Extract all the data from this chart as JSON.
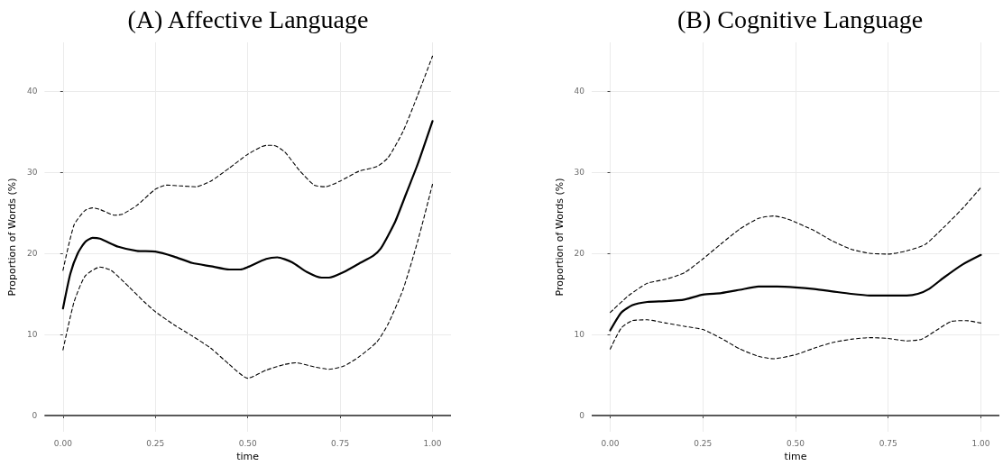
{
  "chart_data": [
    {
      "type": "line",
      "title": "(A) Affective Language",
      "xlabel": "time",
      "ylabel": "Proportion of Words (%)",
      "xlim": [
        -0.05,
        1.05
      ],
      "xticks": [
        {
          "value": 0,
          "label": "0.00"
        },
        {
          "value": 0.25,
          "label": "0.25"
        },
        {
          "value": 0.5,
          "label": "0.50"
        },
        {
          "value": 0.75,
          "label": "0.75"
        },
        {
          "value": 1,
          "label": "1.00"
        }
      ],
      "ylim": [
        -2,
        46
      ],
      "yticks": [
        0,
        10,
        20,
        30,
        40
      ],
      "grid": true,
      "marker": "none",
      "ref_lines": [
        {
          "axis": "y",
          "value": 0,
          "color": "#595959"
        }
      ],
      "series": [
        {
          "color": "#000000",
          "line_style": "solid",
          "x": [
            0,
            0.02,
            0.04,
            0.06,
            0.08,
            0.1,
            0.15,
            0.2,
            0.25,
            0.3,
            0.35,
            0.4,
            0.45,
            0.48,
            0.5,
            0.55,
            0.58,
            0.62,
            0.66,
            0.7,
            0.72,
            0.76,
            0.8,
            0.84,
            0.86,
            0.88,
            0.9,
            0.93,
            0.96,
            1.0
          ],
          "values": [
            13.2,
            17.5,
            20,
            21.4,
            21.9,
            21.8,
            20.8,
            20.3,
            20.2,
            19.6,
            18.8,
            18.4,
            18.0,
            18.0,
            18.3,
            19.3,
            19.5,
            18.9,
            17.7,
            17.0,
            17.0,
            17.7,
            18.7,
            19.7,
            20.6,
            22.2,
            24,
            27.5,
            31,
            36.3
          ]
        },
        {
          "color": "#000000",
          "line_style": "dashed",
          "x": [
            0,
            0.03,
            0.06,
            0.08,
            0.1,
            0.14,
            0.16,
            0.2,
            0.25,
            0.28,
            0.32,
            0.36,
            0.4,
            0.45,
            0.5,
            0.55,
            0.57,
            0.6,
            0.64,
            0.68,
            0.71,
            0.75,
            0.8,
            0.85,
            0.88,
            0.92,
            0.96,
            1.0
          ],
          "values": [
            17.9,
            23.5,
            25.3,
            25.6,
            25.4,
            24.7,
            24.8,
            25.9,
            27.9,
            28.4,
            28.3,
            28.2,
            28.9,
            30.5,
            32.2,
            33.3,
            33.3,
            32.5,
            30.2,
            28.4,
            28.2,
            28.9,
            30.1,
            30.7,
            31.8,
            35,
            39.5,
            44.3
          ]
        },
        {
          "color": "#000000",
          "line_style": "dashed",
          "x": [
            0,
            0.03,
            0.06,
            0.1,
            0.13,
            0.18,
            0.22,
            0.25,
            0.3,
            0.35,
            0.4,
            0.45,
            0.5,
            0.55,
            0.6,
            0.63,
            0.68,
            0.72,
            0.76,
            0.8,
            0.85,
            0.88,
            0.92,
            0.96,
            1.0
          ],
          "values": [
            8.1,
            14,
            17.2,
            18.3,
            17.9,
            15.8,
            14,
            12.8,
            11.2,
            9.8,
            8.3,
            6.3,
            4.6,
            5.6,
            6.3,
            6.5,
            6,
            5.7,
            6.1,
            7.2,
            9.1,
            11.3,
            15.5,
            21.5,
            28.5
          ]
        }
      ]
    },
    {
      "type": "line",
      "title": "(B) Cognitive Language",
      "xlabel": "time",
      "ylabel": "Proportion of Words (%)",
      "xlim": [
        -0.05,
        1.05
      ],
      "xticks": [
        {
          "value": 0,
          "label": "0.00"
        },
        {
          "value": 0.25,
          "label": "0.25"
        },
        {
          "value": 0.5,
          "label": "0.50"
        },
        {
          "value": 0.75,
          "label": "0.75"
        },
        {
          "value": 1,
          "label": "1.00"
        }
      ],
      "ylim": [
        -2,
        46
      ],
      "yticks": [
        0,
        10,
        20,
        30,
        40
      ],
      "grid": true,
      "marker": "none",
      "ref_lines": [
        {
          "axis": "y",
          "value": 0,
          "color": "#595959"
        }
      ],
      "series": [
        {
          "color": "#000000",
          "line_style": "solid",
          "x": [
            0,
            0.03,
            0.06,
            0.1,
            0.15,
            0.2,
            0.25,
            0.3,
            0.35,
            0.4,
            0.45,
            0.5,
            0.55,
            0.6,
            0.65,
            0.7,
            0.75,
            0.8,
            0.83,
            0.86,
            0.9,
            0.95,
            1.0
          ],
          "values": [
            10.5,
            12.7,
            13.6,
            14,
            14.1,
            14.3,
            14.9,
            15.1,
            15.5,
            15.9,
            15.9,
            15.8,
            15.6,
            15.3,
            15.0,
            14.8,
            14.8,
            14.8,
            15.0,
            15.6,
            17,
            18.6,
            19.8
          ]
        },
        {
          "color": "#000000",
          "line_style": "dashed",
          "x": [
            0,
            0.05,
            0.1,
            0.15,
            0.2,
            0.25,
            0.3,
            0.35,
            0.4,
            0.44,
            0.48,
            0.55,
            0.6,
            0.65,
            0.7,
            0.75,
            0.8,
            0.85,
            0.9,
            0.95,
            1.0
          ],
          "values": [
            12.7,
            14.8,
            16.3,
            16.8,
            17.6,
            19.3,
            21.2,
            23.0,
            24.3,
            24.6,
            24.2,
            22.8,
            21.5,
            20.5,
            20.0,
            19.9,
            20.3,
            21.1,
            23.2,
            25.5,
            28.1
          ]
        },
        {
          "color": "#000000",
          "line_style": "dashed",
          "x": [
            0,
            0.03,
            0.06,
            0.1,
            0.15,
            0.2,
            0.25,
            0.3,
            0.35,
            0.4,
            0.44,
            0.5,
            0.55,
            0.6,
            0.65,
            0.7,
            0.75,
            0.8,
            0.84,
            0.88,
            0.92,
            0.96,
            1.0
          ],
          "values": [
            8.2,
            10.8,
            11.7,
            11.8,
            11.4,
            11,
            10.6,
            9.5,
            8.2,
            7.3,
            7.0,
            7.5,
            8.3,
            9.0,
            9.4,
            9.6,
            9.5,
            9.2,
            9.4,
            10.5,
            11.6,
            11.7,
            11.4
          ]
        }
      ]
    }
  ]
}
